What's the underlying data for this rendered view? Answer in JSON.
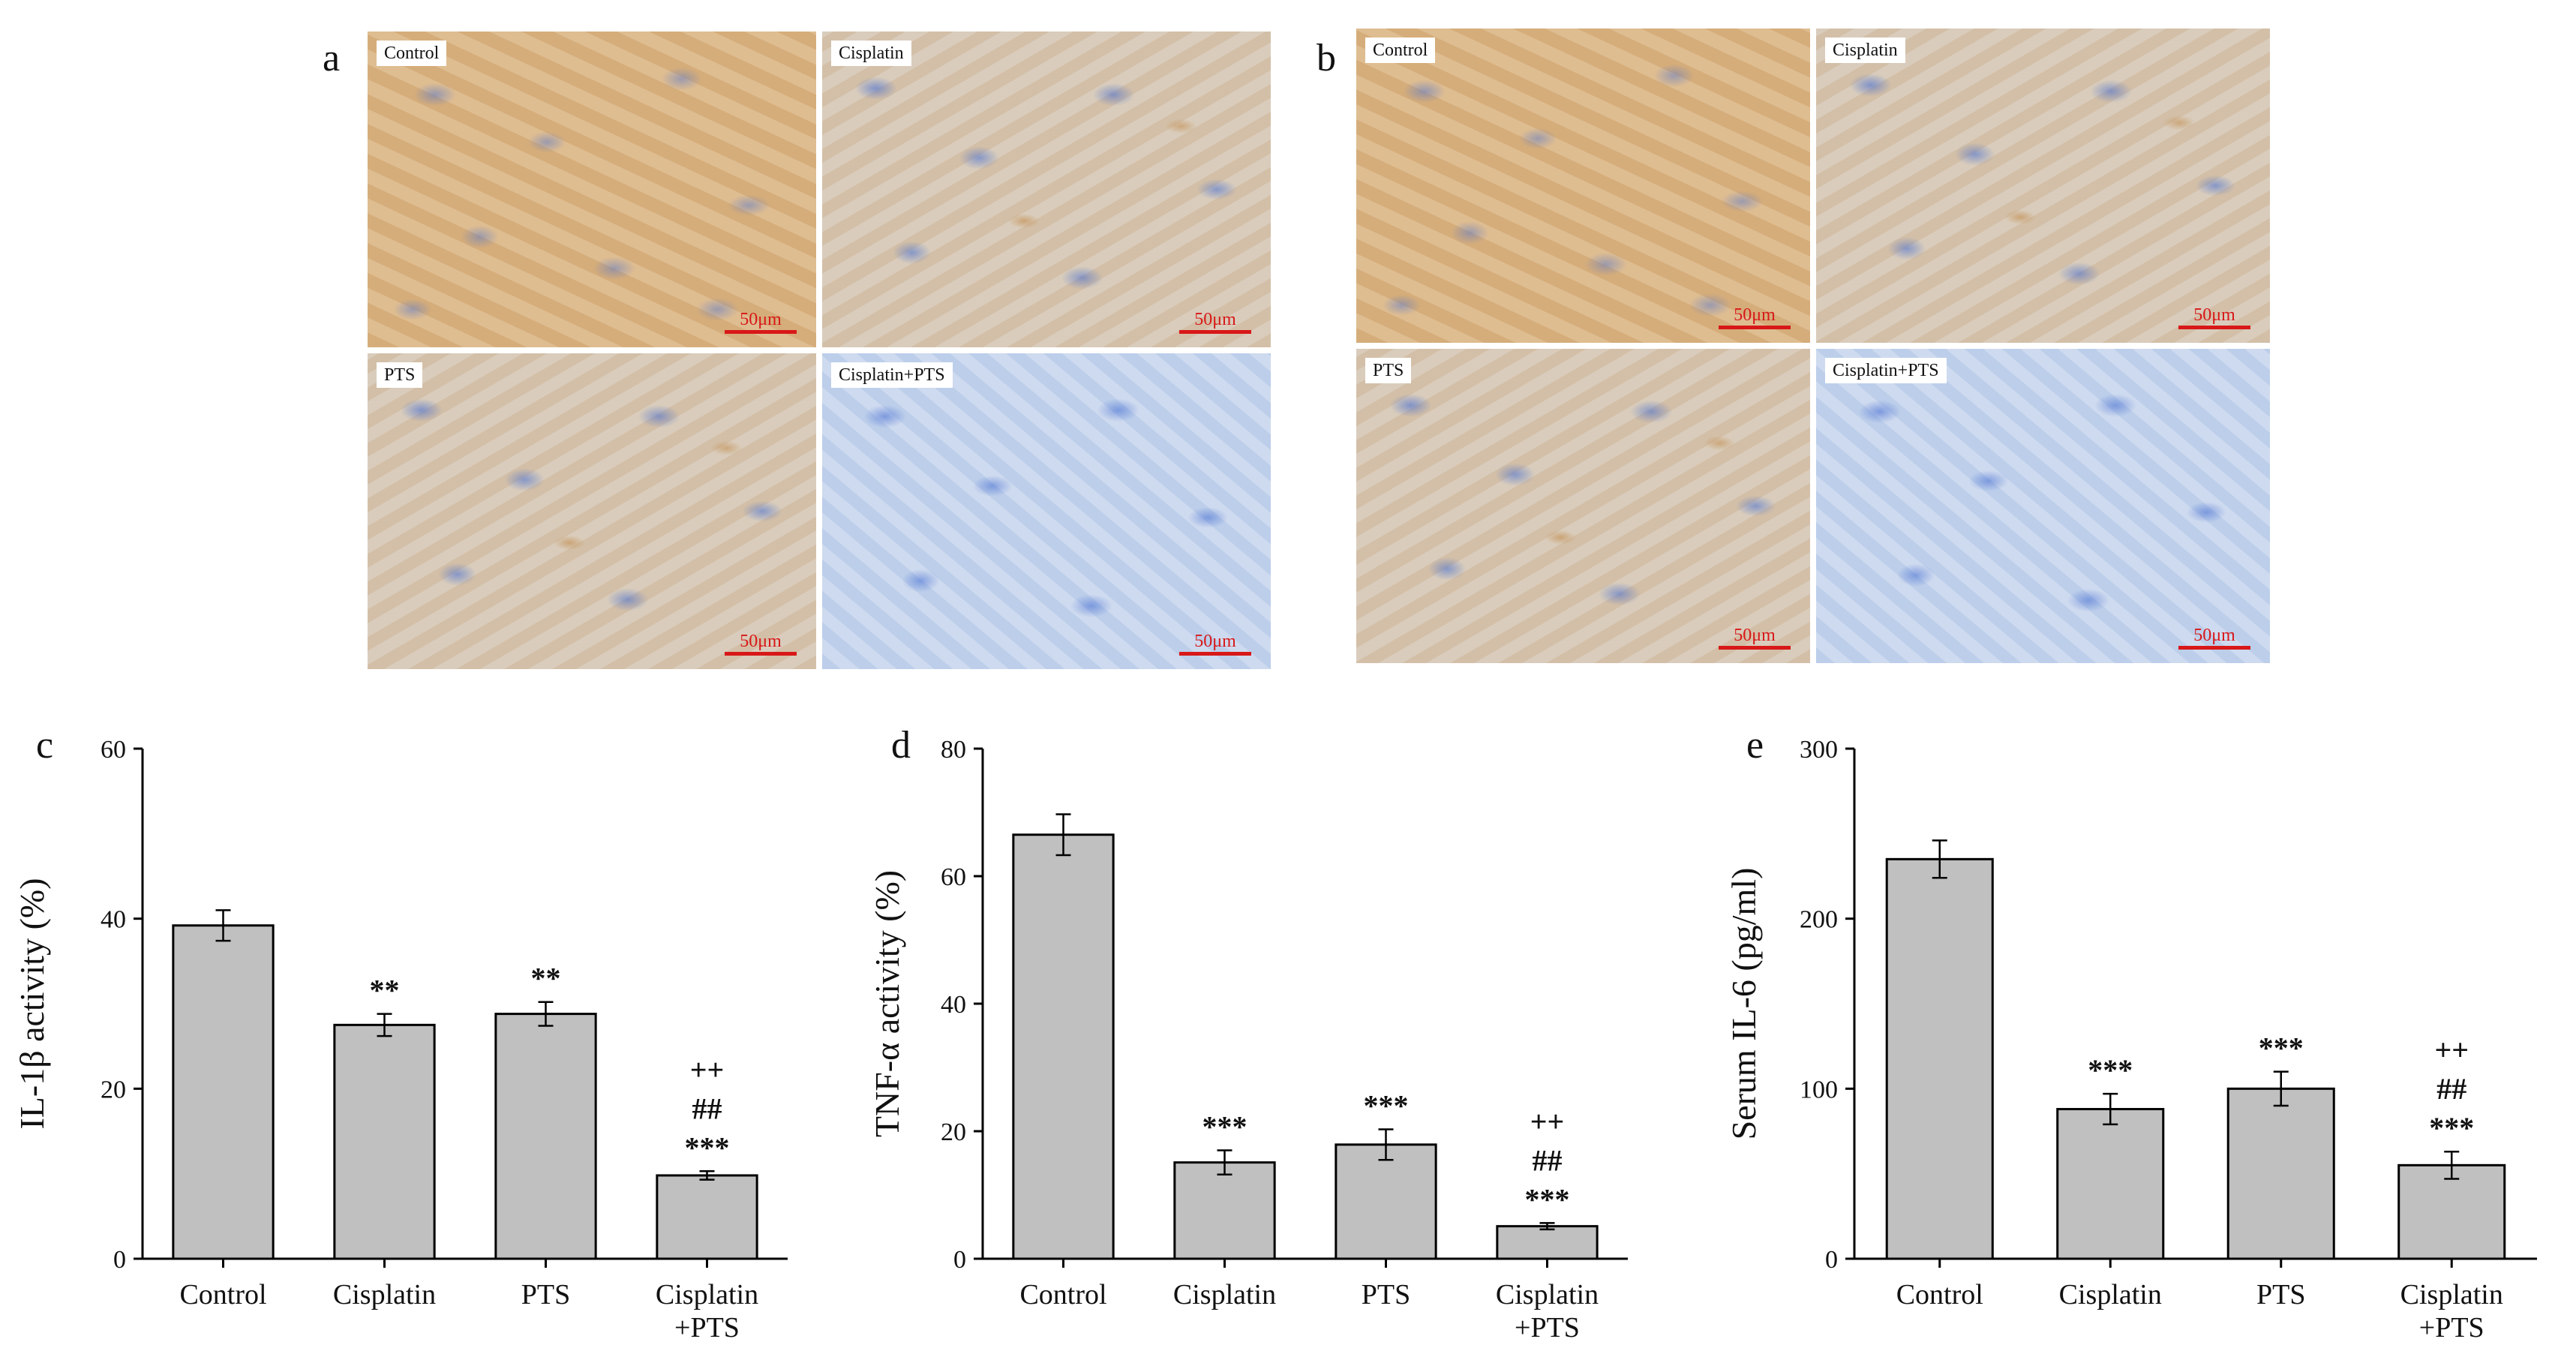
{
  "panels": {
    "a": {
      "letter": "a",
      "images": [
        {
          "label": "Control",
          "scale": "50μm",
          "stain": "stain-brown"
        },
        {
          "label": "Cisplatin",
          "scale": "50μm",
          "stain": "stain-mix"
        },
        {
          "label": "PTS",
          "scale": "50μm",
          "stain": "stain-mix"
        },
        {
          "label": "Cisplatin+PTS",
          "scale": "50μm",
          "stain": "stain-blue"
        }
      ]
    },
    "b": {
      "letter": "b",
      "images": [
        {
          "label": "Control",
          "scale": "50μm",
          "stain": "stain-brown"
        },
        {
          "label": "Cisplatin",
          "scale": "50μm",
          "stain": "stain-mix"
        },
        {
          "label": "PTS",
          "scale": "50μm",
          "stain": "stain-mix"
        },
        {
          "label": "Cisplatin+PTS",
          "scale": "50μm",
          "stain": "stain-blue"
        }
      ]
    }
  },
  "chart_data": [
    {
      "letter": "c",
      "type": "bar",
      "ylabel": "IL-1β activity (%)",
      "ylim": [
        0,
        60
      ],
      "yticks": [
        0,
        20,
        40,
        60
      ],
      "categories": [
        [
          "Control"
        ],
        [
          "Cisplatin"
        ],
        [
          "PTS"
        ],
        [
          "Cisplatin",
          "+PTS"
        ]
      ],
      "values": [
        39.2,
        27.5,
        28.8,
        9.8
      ],
      "errors": [
        1.8,
        1.3,
        1.4,
        0.5
      ],
      "annotations": [
        [],
        [
          "**"
        ],
        [
          "**"
        ],
        [
          "***",
          "##",
          "++"
        ]
      ]
    },
    {
      "letter": "d",
      "type": "bar",
      "ylabel": "TNF-α activity (%)",
      "ylim": [
        0,
        80
      ],
      "yticks": [
        0,
        20,
        40,
        60,
        80
      ],
      "categories": [
        [
          "Control"
        ],
        [
          "Cisplatin"
        ],
        [
          "PTS"
        ],
        [
          "Cisplatin",
          "+PTS"
        ]
      ],
      "values": [
        66.5,
        15.1,
        17.9,
        5.1
      ],
      "errors": [
        3.2,
        1.9,
        2.4,
        0.5
      ],
      "annotations": [
        [],
        [
          "***"
        ],
        [
          "***"
        ],
        [
          "***",
          "##",
          "++"
        ]
      ]
    },
    {
      "letter": "e",
      "type": "bar",
      "ylabel": "Serum IL-6 (pg/ml)",
      "ylim": [
        0,
        300
      ],
      "yticks": [
        0,
        100,
        200,
        300
      ],
      "categories": [
        [
          "Control"
        ],
        [
          "Cisplatin"
        ],
        [
          "PTS"
        ],
        [
          "Cisplatin",
          "+PTS"
        ]
      ],
      "values": [
        235,
        88,
        100,
        55
      ],
      "errors": [
        11,
        9,
        10,
        8
      ],
      "annotations": [
        [],
        [
          "***"
        ],
        [
          "***"
        ],
        [
          "***",
          "##",
          "++"
        ]
      ]
    }
  ]
}
